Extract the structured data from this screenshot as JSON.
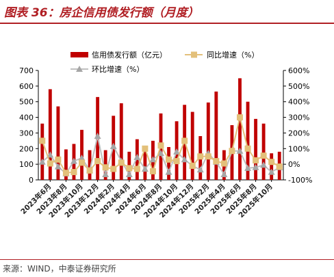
{
  "page": {
    "title": "图表 36：房企信用债发行额（月度）",
    "source": "来源：WIND，中泰证券研究所"
  },
  "colors": {
    "bar": "#c00000",
    "yoy_line": "#e3c07a",
    "yoy_marker": "#e3c07a",
    "mom_line": "#bfbfbf",
    "mom_marker": "#a6a6a6",
    "title": "#b01e23",
    "axis": "#000000"
  },
  "chart_data": {
    "type": "bar",
    "x_tick_labels": [
      "2023年6月",
      "2023年8月",
      "2023年10月",
      "2023年12月",
      "2024年2月",
      "2024年4月",
      "2024年6月",
      "2024年8月",
      "2024年10月",
      "2024年12月",
      "2025年2月",
      "2025年4月",
      "2025年6月",
      "2025年8月",
      "2025年10月"
    ],
    "months": [
      "2023-05",
      "2023-06",
      "2023-07",
      "2023-08",
      "2023-09",
      "2023-10",
      "2023-11",
      "2023-12",
      "2024-01",
      "2024-02",
      "2024-03",
      "2024-04",
      "2024-05",
      "2024-06",
      "2024-07",
      "2024-08",
      "2024-09",
      "2024-10",
      "2024-11",
      "2024-12",
      "2025-01",
      "2025-02",
      "2025-03",
      "2025-04",
      "2025-05",
      "2025-06",
      "2025-07",
      "2025-08",
      "2025-09",
      "2025-10",
      "2025-11"
    ],
    "series": [
      {
        "name": "信用债发行额（亿元）",
        "type": "bar",
        "axis": "left",
        "values": [
          360,
          580,
          470,
          195,
          230,
          320,
          190,
          530,
          190,
          410,
          490,
          180,
          260,
          190,
          250,
          425,
          210,
          375,
          480,
          435,
          280,
          495,
          565,
          190,
          350,
          650,
          500,
          390,
          360,
          170,
          180
        ]
      },
      {
        "name": "同比增速（%）",
        "type": "line",
        "axis": "right",
        "values": [
          150,
          5,
          30,
          -55,
          -50,
          10,
          -40,
          20,
          -20,
          -30,
          10,
          -25,
          -30,
          100,
          -45,
          120,
          30,
          20,
          150,
          -10,
          50,
          50,
          20,
          5,
          85,
          300,
          100,
          25,
          55,
          15,
          -15
        ]
      },
      {
        "name": "环比增速（%）",
        "type": "line",
        "axis": "right",
        "values": [
          15,
          60,
          -15,
          -60,
          20,
          40,
          -40,
          180,
          -65,
          115,
          20,
          -65,
          45,
          -30,
          30,
          70,
          -50,
          80,
          30,
          -10,
          -35,
          70,
          15,
          -65,
          85,
          85,
          -25,
          -20,
          -5,
          -50,
          -20
        ]
      }
    ],
    "y_left": {
      "min": 0,
      "max": 700,
      "ticks": [
        0,
        100,
        200,
        300,
        400,
        500,
        600,
        700
      ]
    },
    "y_right": {
      "min": -100,
      "max": 600,
      "ticks": [
        "-100%",
        "0%",
        "100%",
        "200%",
        "300%",
        "400%",
        "500%",
        "600%"
      ]
    },
    "legend_position": "top",
    "grid": false
  }
}
